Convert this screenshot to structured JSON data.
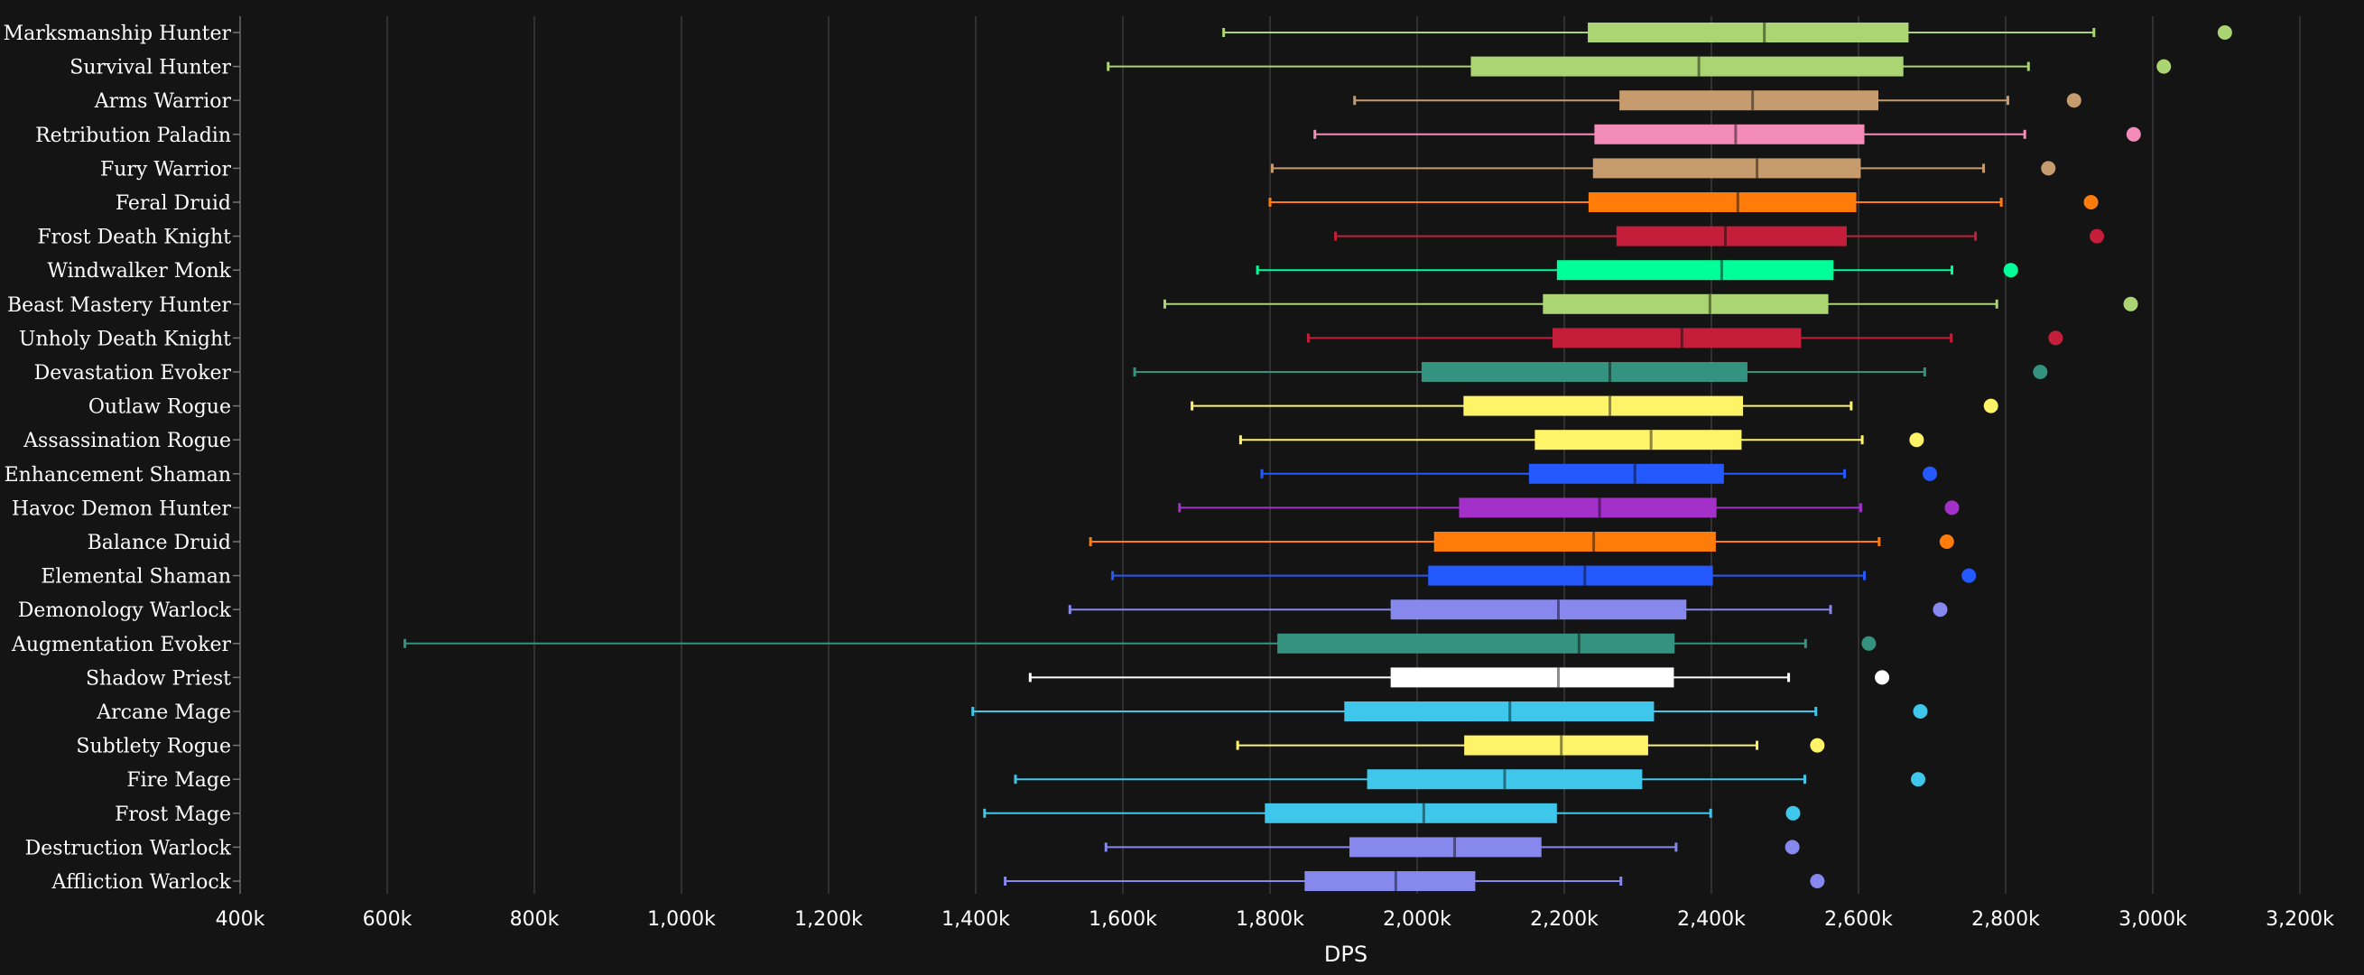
{
  "chart_data": {
    "type": "boxplot",
    "xlabel": "DPS",
    "xlim": [
      400000,
      3200000
    ],
    "x_ticks": [
      400000,
      600000,
      800000,
      1000000,
      1200000,
      1400000,
      1600000,
      1800000,
      2000000,
      2200000,
      2400000,
      2600000,
      2800000,
      3000000,
      3200000
    ],
    "x_tick_labels": [
      "400k",
      "600k",
      "800k",
      "1,000k",
      "1,200k",
      "1,400k",
      "1,600k",
      "1,800k",
      "2,000k",
      "2,200k",
      "2,400k",
      "2,600k",
      "2,800k",
      "3,000k",
      "3,200k"
    ],
    "grid": true,
    "legend": "none",
    "series": [
      {
        "name": "Marksmanship Hunter",
        "color": "#abd473",
        "min": 1737000,
        "q1": 2232000,
        "median": 2472000,
        "q3": 2668000,
        "max": 2920000,
        "outlier": 3098000
      },
      {
        "name": "Survival Hunter",
        "color": "#abd473",
        "min": 1580000,
        "q1": 2073000,
        "median": 2383000,
        "q3": 2661000,
        "max": 2831000,
        "outlier": 3015000
      },
      {
        "name": "Arms Warrior",
        "color": "#c69b6d",
        "min": 1915000,
        "q1": 2275000,
        "median": 2456000,
        "q3": 2627000,
        "max": 2803000,
        "outlier": 2893000
      },
      {
        "name": "Retribution Paladin",
        "color": "#f48cba",
        "min": 1861000,
        "q1": 2241000,
        "median": 2433000,
        "q3": 2608000,
        "max": 2826000,
        "outlier": 2974000
      },
      {
        "name": "Fury Warrior",
        "color": "#c69b6d",
        "min": 1803000,
        "q1": 2239000,
        "median": 2462000,
        "q3": 2603000,
        "max": 2770000,
        "outlier": 2858000
      },
      {
        "name": "Feral Druid",
        "color": "#ff7c0a",
        "min": 1800000,
        "q1": 2233000,
        "median": 2436000,
        "q3": 2597000,
        "max": 2794000,
        "outlier": 2916000
      },
      {
        "name": "Frost Death Knight",
        "color": "#c41e3a",
        "min": 1889000,
        "q1": 2271000,
        "median": 2419000,
        "q3": 2584000,
        "max": 2759000,
        "outlier": 2924000
      },
      {
        "name": "Windwalker Monk",
        "color": "#00ff98",
        "min": 1783000,
        "q1": 2190000,
        "median": 2414000,
        "q3": 2566000,
        "max": 2727000,
        "outlier": 2807000
      },
      {
        "name": "Beast Mastery Hunter",
        "color": "#abd473",
        "min": 1657000,
        "q1": 2171000,
        "median": 2398000,
        "q3": 2559000,
        "max": 2788000,
        "outlier": 2970000
      },
      {
        "name": "Unholy Death Knight",
        "color": "#c41e3a",
        "min": 1852000,
        "q1": 2184000,
        "median": 2360000,
        "q3": 2522000,
        "max": 2726000,
        "outlier": 2868000
      },
      {
        "name": "Devastation Evoker",
        "color": "#33937f",
        "min": 1616000,
        "q1": 2006000,
        "median": 2262000,
        "q3": 2449000,
        "max": 2690000,
        "outlier": 2847000
      },
      {
        "name": "Outlaw Rogue",
        "color": "#fff468",
        "min": 1694000,
        "q1": 2063000,
        "median": 2262000,
        "q3": 2443000,
        "max": 2590000,
        "outlier": 2780000
      },
      {
        "name": "Assassination Rogue",
        "color": "#fff468",
        "min": 1760000,
        "q1": 2160000,
        "median": 2318000,
        "q3": 2441000,
        "max": 2605000,
        "outlier": 2679000
      },
      {
        "name": "Enhancement Shaman",
        "color": "#2459ff",
        "min": 1789000,
        "q1": 2152000,
        "median": 2296000,
        "q3": 2417000,
        "max": 2581000,
        "outlier": 2697000
      },
      {
        "name": "Havoc Demon Hunter",
        "color": "#a330c9",
        "min": 1677000,
        "q1": 2057000,
        "median": 2248000,
        "q3": 2407000,
        "max": 2603000,
        "outlier": 2727000
      },
      {
        "name": "Balance Druid",
        "color": "#ff7c0a",
        "min": 1556000,
        "q1": 2023000,
        "median": 2240000,
        "q3": 2406000,
        "max": 2628000,
        "outlier": 2720000
      },
      {
        "name": "Elemental Shaman",
        "color": "#2459ff",
        "min": 1586000,
        "q1": 2015000,
        "median": 2228000,
        "q3": 2402000,
        "max": 2608000,
        "outlier": 2750000
      },
      {
        "name": "Demonology Warlock",
        "color": "#8788ee",
        "min": 1528000,
        "q1": 1964000,
        "median": 2192000,
        "q3": 2366000,
        "max": 2562000,
        "outlier": 2711000
      },
      {
        "name": "Augmentation Evoker",
        "color": "#33937f",
        "min": 624000,
        "q1": 1810000,
        "median": 2220000,
        "q3": 2350000,
        "max": 2528000,
        "outlier": 2614000
      },
      {
        "name": "Shadow Priest",
        "color": "#ffffff",
        "min": 1474000,
        "q1": 1964000,
        "median": 2192000,
        "q3": 2349000,
        "max": 2505000,
        "outlier": 2632000
      },
      {
        "name": "Arcane Mage",
        "color": "#3fc7eb",
        "min": 1396000,
        "q1": 1901000,
        "median": 2126000,
        "q3": 2322000,
        "max": 2542000,
        "outlier": 2684000
      },
      {
        "name": "Subtlety Rogue",
        "color": "#fff468",
        "min": 1756000,
        "q1": 2064000,
        "median": 2196000,
        "q3": 2314000,
        "max": 2462000,
        "outlier": 2544000
      },
      {
        "name": "Fire Mage",
        "color": "#3fc7eb",
        "min": 1454000,
        "q1": 1932000,
        "median": 2119000,
        "q3": 2306000,
        "max": 2527000,
        "outlier": 2681000
      },
      {
        "name": "Frost Mage",
        "color": "#3fc7eb",
        "min": 1412000,
        "q1": 1793000,
        "median": 2009000,
        "q3": 2190000,
        "max": 2399000,
        "outlier": 2511000
      },
      {
        "name": "Destruction Warlock",
        "color": "#8788ee",
        "min": 1577000,
        "q1": 1908000,
        "median": 2051000,
        "q3": 2169000,
        "max": 2352000,
        "outlier": 2510000
      },
      {
        "name": "Affliction Warlock",
        "color": "#8788ee",
        "min": 1440000,
        "q1": 1847000,
        "median": 1971000,
        "q3": 2079000,
        "max": 2277000,
        "outlier": 2544000
      }
    ]
  }
}
